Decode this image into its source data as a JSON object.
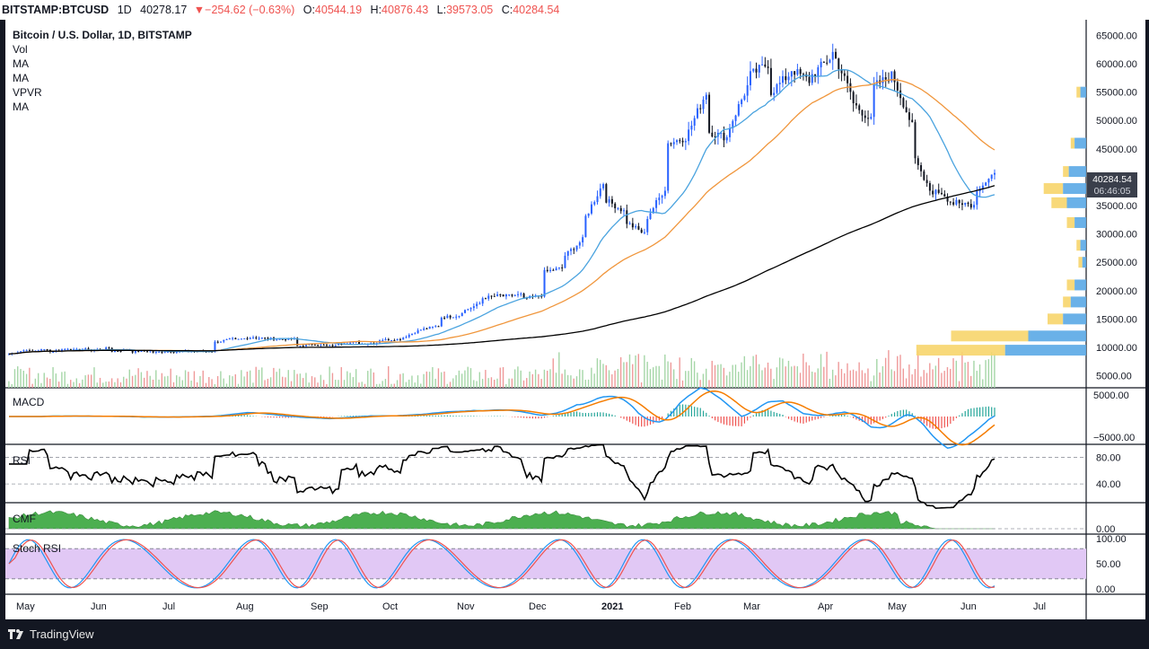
{
  "header": {
    "symbol": "BITSTAMP:BTCUSD",
    "timeframe": "1D",
    "last": "40278.17",
    "change": "−254.62 (−0.63%)",
    "o_key": "O:",
    "o_val": "40544.19",
    "h_key": "H:",
    "h_val": "40876.43",
    "l_key": "L:",
    "l_val": "39573.05",
    "c_key": "C:",
    "c_val": "40284.54"
  },
  "legend": {
    "title": "Bitcoin / U.S. Dollar, 1D, BITSTAMP",
    "items": [
      "Vol",
      "MA",
      "MA",
      "VPVR",
      "MA"
    ]
  },
  "panes": {
    "macd": "MACD",
    "rsi": "RSI",
    "cmf": "CMF",
    "stoch": "Stoch RSI"
  },
  "price_badge": {
    "price": "40284.54",
    "countdown": "06:46:05"
  },
  "footer": {
    "brand": "TradingView"
  },
  "colors": {
    "up": "#26a69a",
    "up_fill": "#ffffff",
    "down": "#787b86",
    "ma_fast": "#4aa3df",
    "ma_mid": "#f0963c",
    "ma_slow": "#000000",
    "macd": "#2196f3",
    "signal": "#f57c00",
    "rsi": "#000000",
    "cmf": "#4caf50",
    "stoch_k": "#2196f3",
    "stoch_d": "#ef5350",
    "stoch_band": "#e1c8f5",
    "vpvr_up": "#5aa9e6",
    "vpvr_down": "#f7d56b"
  },
  "chart_data": {
    "type": "candlestick",
    "title": "Bitcoin / U.S. Dollar, 1D, BITSTAMP",
    "x_labels": [
      "May",
      "Jun",
      "Jul",
      "Aug",
      "Sep",
      "Oct",
      "Nov",
      "Dec",
      "2021",
      "Feb",
      "Mar",
      "Apr",
      "May",
      "Jun",
      "Jul"
    ],
    "y_labels": [
      "65000.00",
      "60000.00",
      "55000.00",
      "50000.00",
      "45000.00",
      "40000.00",
      "35000.00",
      "30000.00",
      "25000.00",
      "20000.00",
      "15000.00",
      "10000.00",
      "5000.00"
    ],
    "y_range": [
      3500,
      66500
    ],
    "close_weekly": [
      [
        8800,
        9600
      ],
      [
        9300,
        9700
      ],
      [
        9200,
        9800
      ],
      [
        9500,
        9700
      ],
      [
        9400,
        9900
      ],
      [
        9300,
        9600
      ],
      [
        9200,
        9400
      ],
      [
        9100,
        9300
      ],
      [
        9200,
        9400
      ],
      [
        9300,
        9300
      ],
      [
        10900,
        11500
      ],
      [
        11300,
        11800
      ],
      [
        11700,
        11500
      ],
      [
        11400,
        11500
      ],
      [
        10200,
        10600
      ],
      [
        10400,
        10300
      ],
      [
        10700,
        10900
      ],
      [
        10600,
        10800
      ],
      [
        11300,
        11400
      ],
      [
        11500,
        12900
      ],
      [
        13100,
        13800
      ],
      [
        15300,
        15600
      ],
      [
        16300,
        17700
      ],
      [
        18700,
        19200
      ],
      [
        19000,
        19300
      ],
      [
        18500,
        19200
      ],
      [
        23300,
        24000
      ],
      [
        26200,
        29000
      ],
      [
        33000,
        39000
      ],
      [
        36000,
        34000
      ],
      [
        32000,
        30000
      ],
      [
        33000,
        38000
      ],
      [
        46000,
        47000
      ],
      [
        48000,
        55000
      ],
      [
        48000,
        47000
      ],
      [
        49000,
        56000
      ],
      [
        58000,
        60000
      ],
      [
        55000,
        58000
      ],
      [
        59000,
        57000
      ],
      [
        58000,
        61000
      ],
      [
        62000,
        55000
      ],
      [
        53000,
        50000
      ],
      [
        56000,
        58000
      ],
      [
        57000,
        49000
      ],
      [
        43000,
        37000
      ],
      [
        38000,
        35000
      ],
      [
        36000,
        35000
      ],
      [
        38000,
        40284
      ]
    ],
    "ma_labels": [
      "MA",
      "MA",
      "MA"
    ],
    "indicators": [
      "Vol",
      "VPVR",
      "MACD",
      "RSI",
      "CMF",
      "Stoch RSI"
    ],
    "macd_ticks": [
      "5000.00",
      "−5000.00"
    ],
    "rsi_ticks": [
      "80.00",
      "40.00"
    ],
    "cmf_ticks": [
      "0.00"
    ],
    "stoch_ticks": [
      "100.00",
      "50.00",
      "0.00"
    ]
  }
}
